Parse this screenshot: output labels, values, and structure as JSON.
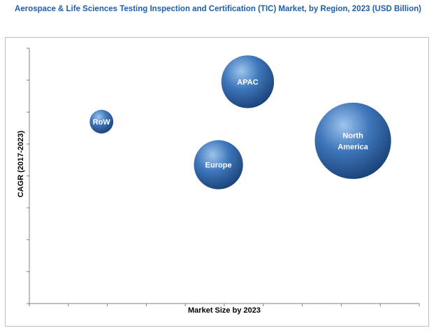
{
  "chart_data": {
    "type": "bubble",
    "title": "Aerospace & Life Sciences Testing Inspection and Certification (TIC) Market, by Region, 2023 (USD Billion)",
    "xlabel": "Market Size by 2023",
    "ylabel": "CAGR (2017-2023)",
    "x_ticks": 10,
    "y_ticks": 8,
    "grid": false,
    "points": [
      {
        "label": "RoW",
        "x": 1.85,
        "y": 5.7,
        "size": 0.15
      },
      {
        "label": "Europe",
        "x": 4.85,
        "y": 4.35,
        "size": 0.85
      },
      {
        "label": "APAC",
        "x": 5.6,
        "y": 6.95,
        "size": 0.95
      },
      {
        "label": "North America",
        "x": 8.3,
        "y": 5.1,
        "size": 1.6
      }
    ],
    "colors": {
      "bubble_light": "#9ec4ec",
      "bubble_mid": "#3f77bb",
      "bubble_dark": "#183f74",
      "title": "#1f5ea8",
      "axis": "#808080"
    }
  }
}
